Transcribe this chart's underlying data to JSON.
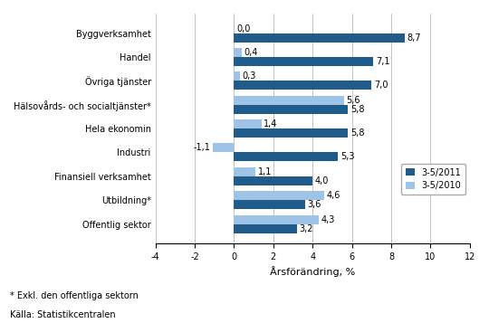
{
  "categories": [
    "Byggverksamhet",
    "Handel",
    "Övriga tjänster",
    "Hälsovårds- och socialtjänster*",
    "Hela ekonomin",
    "Industri",
    "Finansiell verksamhet",
    "Utbildning*",
    "Offentlig sektor"
  ],
  "values_2011": [
    8.7,
    7.1,
    7.0,
    5.8,
    5.8,
    5.3,
    4.0,
    3.6,
    3.2
  ],
  "values_2010": [
    0.0,
    0.4,
    0.3,
    5.6,
    1.4,
    -1.1,
    1.1,
    4.6,
    4.3
  ],
  "color_2011": "#1F5C8B",
  "color_2010": "#9DC3E6",
  "xlabel": "Årsförändring, %",
  "xlim": [
    -4,
    12
  ],
  "xticks": [
    -4,
    -2,
    0,
    2,
    4,
    6,
    8,
    10,
    12
  ],
  "legend_2011": "3-5/2011",
  "legend_2010": "3-5/2010",
  "footnote1": "* Exkl. den offentliga sektorn",
  "footnote2": "Källa: Statistikcentralen",
  "bar_height": 0.38,
  "label_fontsize": 7.0,
  "tick_fontsize": 7.0,
  "xlabel_fontsize": 8.0,
  "legend_fontsize": 7.0
}
